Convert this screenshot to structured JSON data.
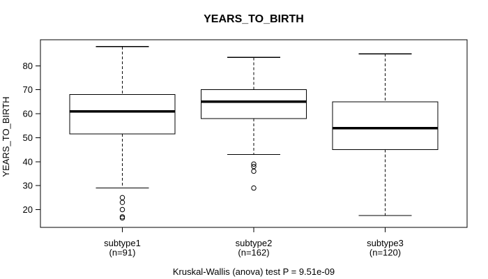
{
  "title": "YEARS_TO_BIRTH",
  "chart_data": {
    "type": "boxplot",
    "title": "YEARS_TO_BIRTH",
    "ylabel": "YEARS_TO_BIRTH",
    "xlabel": "",
    "annotation": "Kruskal-Wallis (anova) test P = 9.51e-09",
    "yticks": [
      20,
      30,
      40,
      50,
      60,
      70,
      80
    ],
    "ylim": [
      12.6,
      90.9
    ],
    "grid": false,
    "legend": false,
    "categories": [
      "subtype1",
      "subtype2",
      "subtype3"
    ],
    "category_sublabels": [
      "(n=91)",
      "(n=162)",
      "(n=120)"
    ],
    "groups": [
      {
        "label": "subtype1",
        "n": 91,
        "whisker_low": 29,
        "q1": 51.5,
        "median": 61,
        "q3": 68,
        "whisker_high": 88,
        "outliers": [
          25,
          23,
          20,
          17,
          16.5
        ]
      },
      {
        "label": "subtype2",
        "n": 162,
        "whisker_low": 43,
        "q1": 58,
        "median": 65,
        "q3": 70,
        "whisker_high": 83.5,
        "outliers": [
          39,
          38,
          36,
          29
        ]
      },
      {
        "label": "subtype3",
        "n": 120,
        "whisker_low": 17.5,
        "q1": 45,
        "median": 54,
        "q3": 65,
        "whisker_high": 85,
        "outliers": []
      }
    ]
  },
  "colors": {
    "foreground": "#000000",
    "background": "#ffffff"
  }
}
